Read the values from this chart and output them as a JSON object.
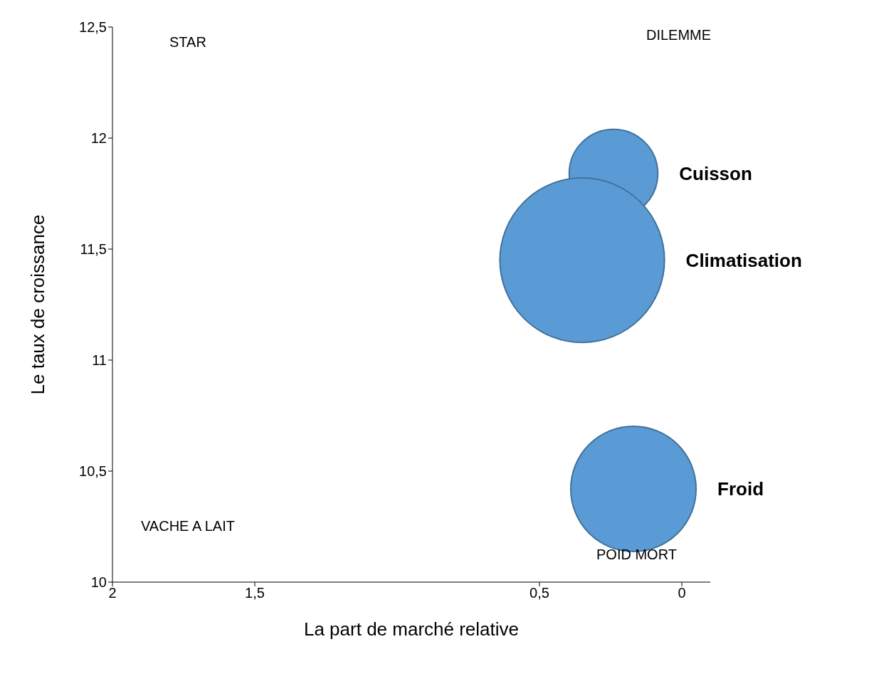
{
  "chart_data": {
    "type": "bubble",
    "xlabel": "La part de marché relative",
    "ylabel": "Le taux de croissance",
    "xlim": [
      2,
      -0.1
    ],
    "xticks": [
      2,
      {
        "value": 1.5,
        "label": "1,5"
      },
      {
        "value": 0.5,
        "label": "0,5"
      },
      0
    ],
    "ylim": [
      10,
      12.5
    ],
    "yticks": [
      10,
      {
        "value": 10.5,
        "label": "10,5"
      },
      11,
      {
        "value": 11.5,
        "label": "11,5"
      },
      12,
      {
        "value": 12.5,
        "label": "12,5"
      }
    ],
    "grid": false,
    "legend": false,
    "annotations": [
      "STAR",
      "DILEMME",
      "VACHE A LAIT",
      "POID MORT"
    ],
    "series": [
      {
        "name": "Cuisson",
        "color": "#5b9bd5",
        "x": [
          0.24
        ],
        "values": [
          11.84
        ],
        "sizes": [
          0.29
        ]
      },
      {
        "name": "Climatisation",
        "color": "#5b9bd5",
        "x": [
          0.35
        ],
        "values": [
          11.45
        ],
        "sizes": [
          1
        ]
      },
      {
        "name": "Froid",
        "color": "#5b9bd5",
        "x": [
          0.17
        ],
        "values": [
          10.42
        ],
        "sizes": [
          0.58
        ]
      }
    ]
  }
}
